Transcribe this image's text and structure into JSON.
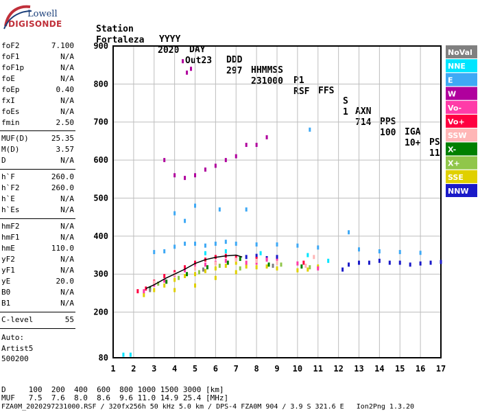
{
  "logo": {
    "line1": "Lowell",
    "line2": "DIGISONDE"
  },
  "header": {
    "labels": [
      "Station",
      "YYYY",
      "DAY",
      "DDD",
      "HHMMSS",
      "P1",
      "FFS",
      "S",
      "AXN",
      "PPS",
      "IGA",
      "PS"
    ],
    "values": [
      "Fortaleza",
      "2020",
      "Out23",
      "297",
      "231000",
      "RSF",
      "",
      "1",
      "714",
      "100",
      "10+",
      "11"
    ]
  },
  "params": [
    {
      "k": "foF2",
      "v": "7.100"
    },
    {
      "k": "foF1",
      "v": "N/A"
    },
    {
      "k": "foF1p",
      "v": "N/A"
    },
    {
      "k": "foE",
      "v": "N/A"
    },
    {
      "k": "foEp",
      "v": "0.40"
    },
    {
      "k": "fxI",
      "v": "N/A"
    },
    {
      "k": "foEs",
      "v": "N/A"
    },
    {
      "k": "fmin",
      "v": "2.50"
    },
    {
      "k": "MUF(D)",
      "v": "25.35"
    },
    {
      "k": "M(D)",
      "v": "3.57"
    },
    {
      "k": "D",
      "v": "N/A"
    },
    {
      "k": "h`F",
      "v": "260.0"
    },
    {
      "k": "h`F2",
      "v": "260.0"
    },
    {
      "k": "h`E",
      "v": "N/A"
    },
    {
      "k": "h`Es",
      "v": "N/A"
    },
    {
      "k": "hmF2",
      "v": "N/A"
    },
    {
      "k": "hmF1",
      "v": "N/A"
    },
    {
      "k": "hmE",
      "v": "110.0"
    },
    {
      "k": "yF2",
      "v": "N/A"
    },
    {
      "k": "yF1",
      "v": "N/A"
    },
    {
      "k": "yE",
      "v": "20.0"
    },
    {
      "k": "B0",
      "v": "N/A"
    },
    {
      "k": "B1",
      "v": "N/A"
    },
    {
      "k": "C-level",
      "v": "55"
    }
  ],
  "auto": {
    "line1": "Auto:",
    "line2": "Artist5",
    "line3": "500200"
  },
  "footer": {
    "line1": "D     100  200  400  600  800 1000 1500 3000 [km]",
    "line2": "MUF   7.5  7.6  8.0  8.6  9.6 11.0 14.9 25.4 [MHz]",
    "line3": "FZA0M_2020297231000.RSF / 320fx256h 50 kHz 5.0 km / DPS-4 FZA0M 904 / 3.9 S 321.6 E   Ion2Png 1.3.20"
  },
  "chart_data": {
    "type": "scatter",
    "xlim": [
      1,
      17
    ],
    "ylim": [
      80,
      900
    ],
    "xticks": [
      1,
      2,
      3,
      4,
      5,
      6,
      7,
      8,
      9,
      10,
      11,
      12,
      13,
      14,
      15,
      16,
      17
    ],
    "yticks": [
      80,
      200,
      300,
      400,
      500,
      600,
      700,
      800,
      900
    ],
    "grid": true,
    "legend_placement": "right",
    "legend": [
      {
        "name": "NoVal",
        "color": "#808080"
      },
      {
        "name": "NNE",
        "color": "#00e5ff"
      },
      {
        "name": "E",
        "color": "#3fa9f5"
      },
      {
        "name": "W",
        "color": "#b0009d"
      },
      {
        "name": "Vo-",
        "color": "#ff3ba8"
      },
      {
        "name": "Vo+",
        "color": "#ff0040"
      },
      {
        "name": "SSW",
        "color": "#ffb6b6"
      },
      {
        "name": "X-",
        "color": "#008000"
      },
      {
        "name": "X+",
        "color": "#90c64a"
      },
      {
        "name": "SSE",
        "color": "#e0d000"
      },
      {
        "name": "NNW",
        "color": "#1a1ac8"
      }
    ],
    "series": [
      {
        "color": "#b0009d",
        "points": [
          [
            3.5,
            600
          ],
          [
            4,
            560
          ],
          [
            4.5,
            553
          ],
          [
            5,
            560
          ],
          [
            5.5,
            575
          ],
          [
            6,
            585
          ],
          [
            6.5,
            600
          ],
          [
            7,
            610
          ],
          [
            7.5,
            640
          ],
          [
            8,
            640
          ],
          [
            8.5,
            660
          ],
          [
            4.4,
            860
          ],
          [
            4.6,
            830
          ],
          [
            4.8,
            840
          ]
        ]
      },
      {
        "color": "#3fa9f5",
        "points": [
          [
            3,
            358
          ],
          [
            3.5,
            360
          ],
          [
            4,
            372
          ],
          [
            4.5,
            380
          ],
          [
            5,
            380
          ],
          [
            5.5,
            375
          ],
          [
            6,
            380
          ],
          [
            6.5,
            385
          ],
          [
            7,
            380
          ],
          [
            8,
            378
          ],
          [
            9,
            378
          ],
          [
            10,
            375
          ],
          [
            11,
            370
          ],
          [
            13,
            365
          ],
          [
            14,
            360
          ],
          [
            15,
            358
          ],
          [
            16,
            356
          ],
          [
            4,
            460
          ],
          [
            4.5,
            440
          ],
          [
            5,
            480
          ],
          [
            6.2,
            470
          ],
          [
            7.5,
            470
          ],
          [
            12.5,
            410
          ],
          [
            10.6,
            680
          ]
        ]
      },
      {
        "color": "#1a1ac8",
        "points": [
          [
            7.5,
            345
          ],
          [
            8,
            348
          ],
          [
            8.5,
            342
          ],
          [
            9,
            345
          ],
          [
            12.5,
            325
          ],
          [
            13,
            330
          ],
          [
            13.5,
            330
          ],
          [
            14,
            335
          ],
          [
            14.5,
            330
          ],
          [
            15,
            330
          ],
          [
            15.5,
            325
          ],
          [
            16,
            328
          ],
          [
            16.5,
            330
          ],
          [
            17,
            332
          ],
          [
            12.2,
            312
          ]
        ]
      },
      {
        "color": "#e0d000",
        "points": [
          [
            2.5,
            245
          ],
          [
            3,
            258
          ],
          [
            3.5,
            270
          ],
          [
            4,
            285
          ],
          [
            4.5,
            295
          ],
          [
            5,
            300
          ],
          [
            5.5,
            308
          ],
          [
            6,
            315
          ],
          [
            6.5,
            322
          ],
          [
            7,
            330
          ],
          [
            7.5,
            320
          ],
          [
            8,
            318
          ],
          [
            8.5,
            320
          ],
          [
            9,
            315
          ],
          [
            10,
            310
          ],
          [
            10.5,
            312
          ],
          [
            11,
            320
          ],
          [
            4,
            258
          ],
          [
            5,
            270
          ],
          [
            6,
            290
          ],
          [
            7,
            305
          ]
        ]
      },
      {
        "color": "#ff3ba8",
        "points": [
          [
            2.5,
            255
          ],
          [
            3,
            272
          ],
          [
            3.5,
            283
          ],
          [
            4,
            298
          ],
          [
            4.5,
            310
          ],
          [
            5,
            318
          ],
          [
            5.5,
            325
          ],
          [
            6,
            330
          ],
          [
            6.5,
            335
          ],
          [
            7,
            340
          ],
          [
            7.5,
            330
          ],
          [
            8,
            330
          ],
          [
            8.5,
            338
          ],
          [
            9,
            335
          ],
          [
            10,
            328
          ],
          [
            11,
            315
          ]
        ]
      },
      {
        "color": "#ff0040",
        "points": [
          [
            2.2,
            255
          ],
          [
            2.6,
            262
          ],
          [
            3,
            280
          ],
          [
            3.5,
            295
          ],
          [
            4,
            305
          ],
          [
            4.5,
            318
          ],
          [
            5,
            330
          ],
          [
            5.5,
            338
          ],
          [
            6,
            345
          ],
          [
            6.5,
            348
          ],
          [
            7,
            345
          ],
          [
            8,
            340
          ],
          [
            9,
            330
          ],
          [
            10.3,
            330
          ]
        ]
      },
      {
        "color": "#008000",
        "points": [
          [
            2.8,
            262
          ],
          [
            3.6,
            280
          ],
          [
            4.6,
            300
          ],
          [
            5.6,
            318
          ],
          [
            6.6,
            330
          ],
          [
            7.2,
            340
          ],
          [
            8.6,
            325
          ],
          [
            10.2,
            320
          ]
        ]
      },
      {
        "color": "#90c64a",
        "points": [
          [
            3.2,
            275
          ],
          [
            4.2,
            290
          ],
          [
            5.2,
            305
          ],
          [
            6.2,
            322
          ],
          [
            7.2,
            315
          ],
          [
            9.2,
            325
          ],
          [
            10.6,
            318
          ]
        ]
      },
      {
        "color": "#ffb6b6",
        "points": [
          [
            3,
            278
          ],
          [
            4,
            300
          ],
          [
            5,
            315
          ],
          [
            6,
            328
          ],
          [
            7,
            338
          ],
          [
            8,
            335
          ],
          [
            9,
            330
          ],
          [
            10.4,
            322
          ],
          [
            10.8,
            345
          ]
        ]
      },
      {
        "color": "#00e5ff",
        "points": [
          [
            1.5,
            88
          ],
          [
            1.85,
            88
          ],
          [
            5.5,
            355
          ],
          [
            6.5,
            360
          ],
          [
            8.2,
            355
          ],
          [
            10.5,
            350
          ],
          [
            11.5,
            335
          ]
        ]
      },
      {
        "color": "#808080",
        "points": [
          [
            2.8,
            258
          ],
          [
            5.4,
            312
          ],
          [
            8.8,
            322
          ]
        ]
      }
    ],
    "trace": [
      [
        2.6,
        262
      ],
      [
        3,
        272
      ],
      [
        3.6,
        290
      ],
      [
        4,
        300
      ],
      [
        4.5,
        313
      ],
      [
        5,
        328
      ],
      [
        5.5,
        338
      ],
      [
        6,
        344
      ],
      [
        6.5,
        348
      ],
      [
        7,
        350
      ],
      [
        7.3,
        345
      ]
    ]
  }
}
